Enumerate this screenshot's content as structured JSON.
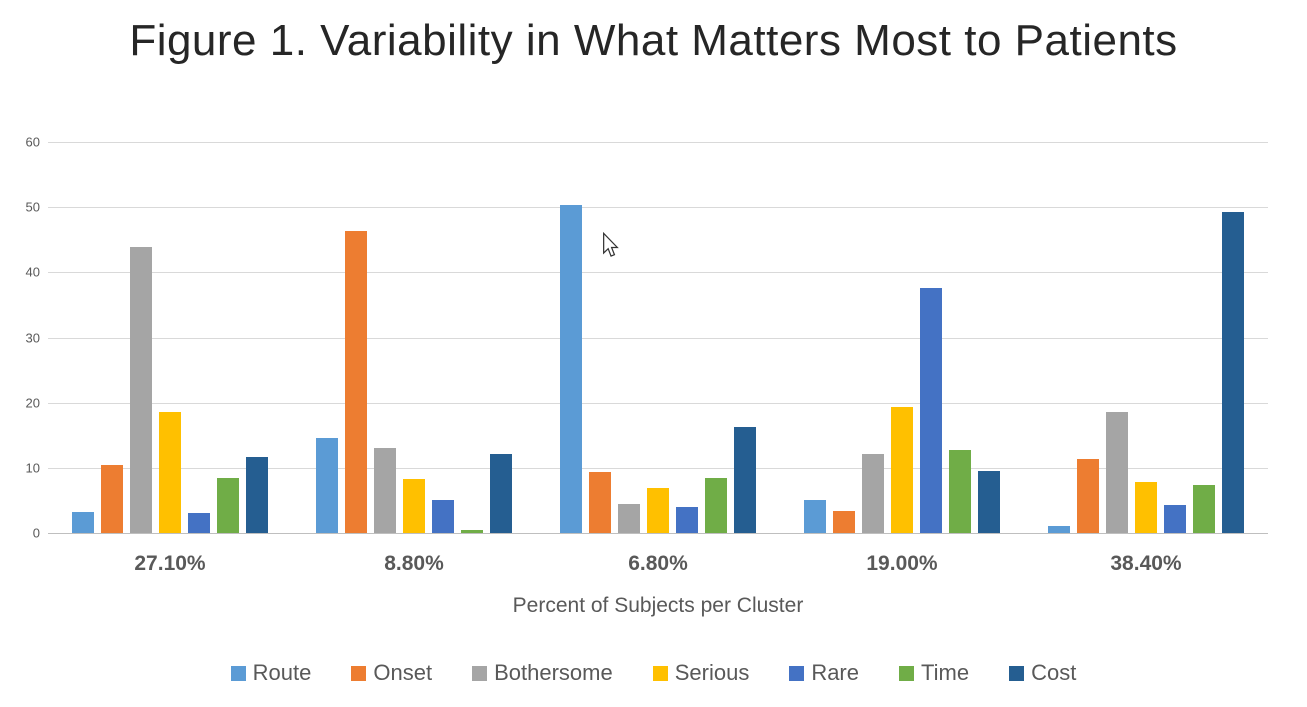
{
  "title": "Figure 1. Variability in What Matters Most to Patients",
  "chart_data": {
    "type": "bar",
    "title": "Figure 1. Variability in What Matters Most to Patients",
    "categories": [
      "27.10%",
      "8.80%",
      "6.80%",
      "19.00%",
      "38.40%"
    ],
    "xlabel": "Percent of Subjects per Cluster",
    "ylabel": "",
    "ylim": [
      0,
      60
    ],
    "ytick_step": 10,
    "grid": true,
    "legend_position": "bottom",
    "series": [
      {
        "name": "Route",
        "color": "#5B9BD5",
        "values": [
          3.3,
          14.6,
          50.4,
          5.1,
          1.1
        ]
      },
      {
        "name": "Onset",
        "color": "#ED7D31",
        "values": [
          10.5,
          46.3,
          9.3,
          3.4,
          11.3
        ]
      },
      {
        "name": "Bothersome",
        "color": "#A5A5A5",
        "values": [
          43.9,
          13.0,
          4.5,
          12.1,
          18.6
        ]
      },
      {
        "name": "Serious",
        "color": "#FFC000",
        "values": [
          18.6,
          8.3,
          6.9,
          19.4,
          7.9
        ]
      },
      {
        "name": "Rare",
        "color": "#4472C4",
        "values": [
          3.1,
          5.0,
          4.0,
          37.6,
          4.3
        ]
      },
      {
        "name": "Time",
        "color": "#70AD47",
        "values": [
          8.4,
          0.5,
          8.4,
          12.7,
          7.4
        ]
      },
      {
        "name": "Cost",
        "color": "#255E91",
        "values": [
          11.6,
          12.1,
          16.2,
          9.5,
          49.2
        ]
      }
    ]
  },
  "cursor": {
    "name": "arrow-pointer"
  }
}
